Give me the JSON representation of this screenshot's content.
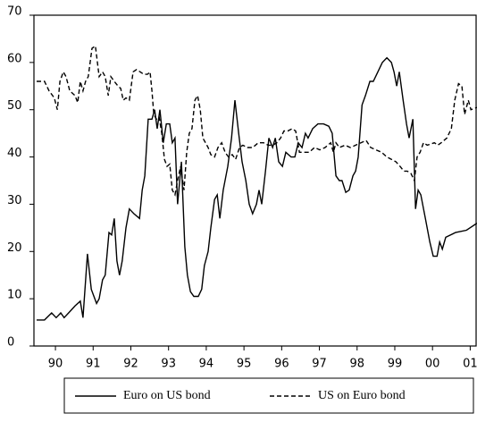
{
  "chart_data": {
    "type": "line",
    "xlim": [
      1989.93,
      2001.68
    ],
    "xticks": [
      {
        "value": 1990.5,
        "label": "90"
      },
      {
        "value": 1991.5,
        "label": "91"
      },
      {
        "value": 1992.5,
        "label": "92"
      },
      {
        "value": 1993.5,
        "label": "93"
      },
      {
        "value": 1994.5,
        "label": "94"
      },
      {
        "value": 1995.5,
        "label": "95"
      },
      {
        "value": 1996.5,
        "label": "96"
      },
      {
        "value": 1997.5,
        "label": "97"
      },
      {
        "value": 1998.5,
        "label": "98"
      },
      {
        "value": 1999.5,
        "label": "99"
      },
      {
        "value": 2000.5,
        "label": "00"
      },
      {
        "value": 2001.5,
        "label": "01"
      }
    ],
    "ylim": [
      0,
      70
    ],
    "yticks": [
      0,
      10,
      20,
      30,
      40,
      50,
      60,
      70
    ],
    "grid": false,
    "legend": "bottom",
    "series": [
      {
        "name": "Euro on US bond",
        "color": "#000000",
        "line_style": "solid",
        "x": [
          1990.0,
          1990.21,
          1990.4,
          1990.52,
          1990.64,
          1990.73,
          1990.85,
          1991.02,
          1991.16,
          1991.23,
          1991.35,
          1991.45,
          1991.59,
          1991.66,
          1991.75,
          1991.82,
          1991.92,
          1991.99,
          1992.06,
          1992.13,
          1992.2,
          1992.27,
          1992.37,
          1992.46,
          1992.58,
          1992.73,
          1992.8,
          1992.87,
          1992.96,
          1993.06,
          1993.13,
          1993.2,
          1993.27,
          1993.36,
          1993.44,
          1993.53,
          1993.6,
          1993.67,
          1993.74,
          1993.84,
          1993.93,
          1994.0,
          1994.08,
          1994.17,
          1994.29,
          1994.38,
          1994.45,
          1994.55,
          1994.62,
          1994.72,
          1994.79,
          1994.86,
          1994.95,
          1995.07,
          1995.17,
          1995.26,
          1995.36,
          1995.45,
          1995.55,
          1995.64,
          1995.73,
          1995.83,
          1995.9,
          1995.97,
          1996.07,
          1996.16,
          1996.26,
          1996.33,
          1996.42,
          1996.52,
          1996.61,
          1996.75,
          1996.85,
          1996.94,
          1997.04,
          1997.13,
          1997.2,
          1997.32,
          1997.46,
          1997.61,
          1997.75,
          1997.84,
          1997.94,
          1998.03,
          1998.1,
          1998.2,
          1998.29,
          1998.39,
          1998.46,
          1998.53,
          1998.63,
          1998.72,
          1998.84,
          1998.93,
          1999.05,
          1999.17,
          1999.29,
          1999.41,
          1999.48,
          1999.55,
          1999.62,
          1999.72,
          1999.81,
          1999.88,
          1999.98,
          2000.05,
          2000.12,
          2000.19,
          2000.31,
          2000.43,
          2000.52,
          2000.62,
          2000.69,
          2000.76,
          2000.85,
          2001.11,
          2001.4,
          2001.68
        ],
        "values": [
          5.5,
          5.5,
          7,
          6,
          7,
          6,
          7,
          8.5,
          9.5,
          6,
          19.5,
          12,
          9,
          10,
          14,
          15,
          24,
          23.5,
          27,
          18,
          15,
          18,
          25,
          29,
          28,
          27,
          33,
          36,
          48,
          48,
          50,
          46,
          50,
          43,
          47,
          47,
          43,
          44,
          30,
          39,
          21,
          15,
          11.5,
          10.5,
          10.5,
          12,
          17,
          20,
          25,
          31,
          32,
          27,
          33,
          38,
          44,
          52,
          45,
          39,
          35,
          30,
          28,
          30,
          33,
          30,
          37,
          44,
          42,
          44,
          39,
          38,
          41,
          40,
          40,
          43,
          42,
          45,
          44,
          46,
          47,
          47,
          46.5,
          45,
          36,
          35,
          35,
          32.5,
          33,
          36,
          37,
          40,
          51,
          53,
          56,
          56,
          58,
          60,
          61,
          60,
          58,
          55,
          58,
          52,
          47,
          44,
          48,
          29,
          33,
          32,
          27,
          22,
          19,
          19,
          22,
          20.5,
          23,
          24,
          24.5,
          26
        ]
      },
      {
        "name": "US on Euro bond",
        "color": "#000000",
        "line_style": "dashed",
        "x": [
          1990.0,
          1990.21,
          1990.33,
          1990.47,
          1990.55,
          1990.62,
          1990.71,
          1990.78,
          1990.88,
          1991.02,
          1991.09,
          1991.16,
          1991.23,
          1991.3,
          1991.37,
          1991.47,
          1991.56,
          1991.66,
          1991.75,
          1991.82,
          1991.9,
          1991.97,
          1992.06,
          1992.16,
          1992.23,
          1992.3,
          1992.37,
          1992.46,
          1992.56,
          1992.65,
          1992.75,
          1992.84,
          1992.94,
          1993.01,
          1993.06,
          1993.11,
          1993.18,
          1993.25,
          1993.32,
          1993.39,
          1993.46,
          1993.53,
          1993.6,
          1993.67,
          1993.74,
          1993.82,
          1993.91,
          1993.98,
          1994.05,
          1994.12,
          1994.2,
          1994.27,
          1994.34,
          1994.41,
          1994.48,
          1994.55,
          1994.62,
          1994.72,
          1994.81,
          1994.91,
          1995.0,
          1995.09,
          1995.19,
          1995.28,
          1995.38,
          1995.47,
          1995.59,
          1995.73,
          1995.88,
          1996.02,
          1996.14,
          1996.26,
          1996.37,
          1996.47,
          1996.56,
          1996.66,
          1996.78,
          1996.87,
          1996.97,
          1997.09,
          1997.23,
          1997.37,
          1997.51,
          1997.65,
          1997.8,
          1997.87,
          1997.94,
          1998.03,
          1998.18,
          1998.32,
          1998.46,
          1998.6,
          1998.74,
          1998.86,
          1999.0,
          1999.15,
          1999.29,
          1999.41,
          1999.53,
          1999.64,
          1999.74,
          1999.83,
          1999.93,
          2000.02,
          2000.09,
          2000.17,
          2000.26,
          2000.36,
          2000.55,
          2000.64,
          2000.73,
          2000.88,
          2001.0,
          2001.09,
          2001.19,
          2001.28,
          2001.35,
          2001.45,
          2001.52,
          2001.68
        ],
        "values": [
          56,
          56,
          54,
          52.5,
          50,
          56,
          58,
          57,
          54,
          53,
          51.5,
          56,
          54,
          56,
          57,
          63,
          63.5,
          57,
          58,
          57,
          53,
          57,
          56,
          55,
          54.5,
          52,
          52.5,
          52,
          58,
          58.5,
          58,
          57.5,
          57.5,
          58,
          54,
          49,
          48,
          48.5,
          45,
          39.5,
          38,
          38.5,
          33,
          32,
          35,
          38,
          33,
          41,
          45,
          46,
          52,
          53,
          50,
          44,
          43,
          42,
          40.5,
          40,
          42,
          43,
          41,
          40,
          40.5,
          39.5,
          42,
          42.5,
          42,
          42,
          43,
          43,
          42.5,
          42.5,
          43,
          44,
          45.5,
          45.5,
          46,
          45.5,
          41,
          41,
          41,
          42,
          41.5,
          42,
          43,
          41,
          43,
          42,
          42.5,
          42,
          42.5,
          43,
          43.5,
          42,
          41.5,
          41,
          40,
          39.5,
          39,
          38,
          37,
          37,
          36.5,
          35,
          40,
          41,
          43,
          42.5,
          43,
          42.5,
          43,
          44,
          46,
          52,
          55.5,
          55,
          49,
          52,
          50,
          50.5
        ]
      }
    ]
  }
}
